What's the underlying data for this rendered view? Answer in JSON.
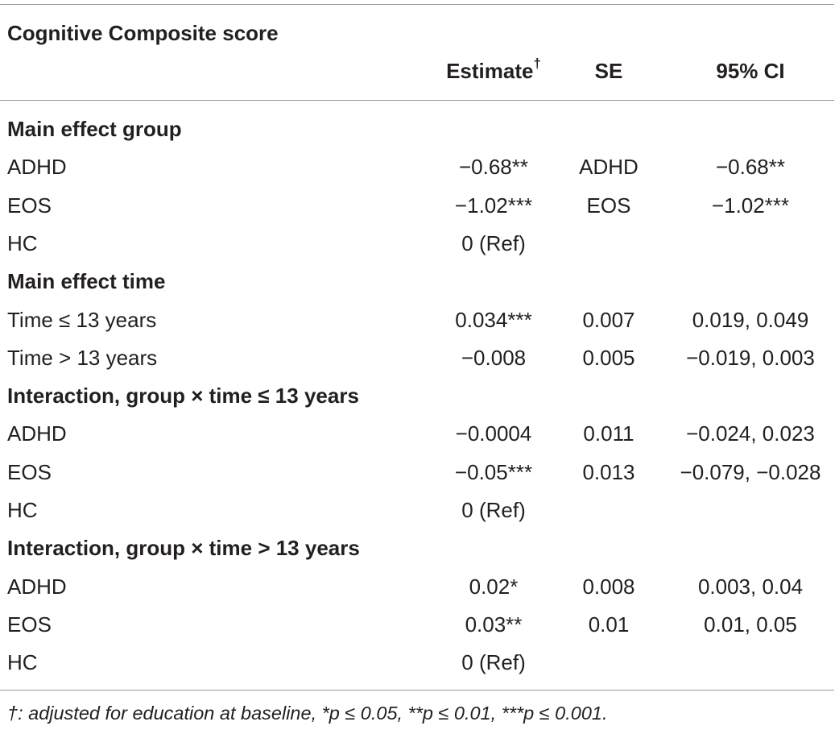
{
  "table": {
    "title": "Cognitive Composite score",
    "headers": {
      "estimate": "Estimate",
      "estimate_mark": "†",
      "se": "SE",
      "ci": "95% CI"
    },
    "rows": [
      {
        "type": "section",
        "label": "Main effect group"
      },
      {
        "type": "data",
        "label": "ADHD",
        "estimate": "−0.68**",
        "se": "ADHD",
        "ci": "−0.68**"
      },
      {
        "type": "data",
        "label": "EOS",
        "estimate": "−1.02***",
        "se": "EOS",
        "ci": "−1.02***"
      },
      {
        "type": "data",
        "label": "HC",
        "estimate": "0 (Ref)",
        "se": "",
        "ci": ""
      },
      {
        "type": "section",
        "label": "Main effect time"
      },
      {
        "type": "data",
        "label": "Time ≤ 13 years",
        "estimate": "0.034***",
        "se": "0.007",
        "ci": "0.019, 0.049"
      },
      {
        "type": "data",
        "label": "Time > 13 years",
        "estimate": "−0.008",
        "se": "0.005",
        "ci": "−0.019, 0.003"
      },
      {
        "type": "section",
        "label": "Interaction, group × time ≤ 13 years"
      },
      {
        "type": "data",
        "label": "ADHD",
        "estimate": "−0.0004",
        "se": "0.011",
        "ci": "−0.024, 0.023"
      },
      {
        "type": "data",
        "label": "EOS",
        "estimate": "−0.05***",
        "se": "0.013",
        "ci": "−0.079, −0.028"
      },
      {
        "type": "data",
        "label": "HC",
        "estimate": "0 (Ref)",
        "se": "",
        "ci": ""
      },
      {
        "type": "section",
        "label": "Interaction, group × time > 13 years"
      },
      {
        "type": "data",
        "label": "ADHD",
        "estimate": "0.02*",
        "se": "0.008",
        "ci": "0.003, 0.04"
      },
      {
        "type": "data",
        "label": "EOS",
        "estimate": "0.03**",
        "se": "0.01",
        "ci": "0.01, 0.05"
      },
      {
        "type": "data",
        "label": "HC",
        "estimate": "0 (Ref)",
        "se": "",
        "ci": ""
      }
    ],
    "footnote": "†: adjusted for education at baseline, *p ≤ 0.05, **p ≤ 0.01, ***p ≤ 0.001."
  }
}
